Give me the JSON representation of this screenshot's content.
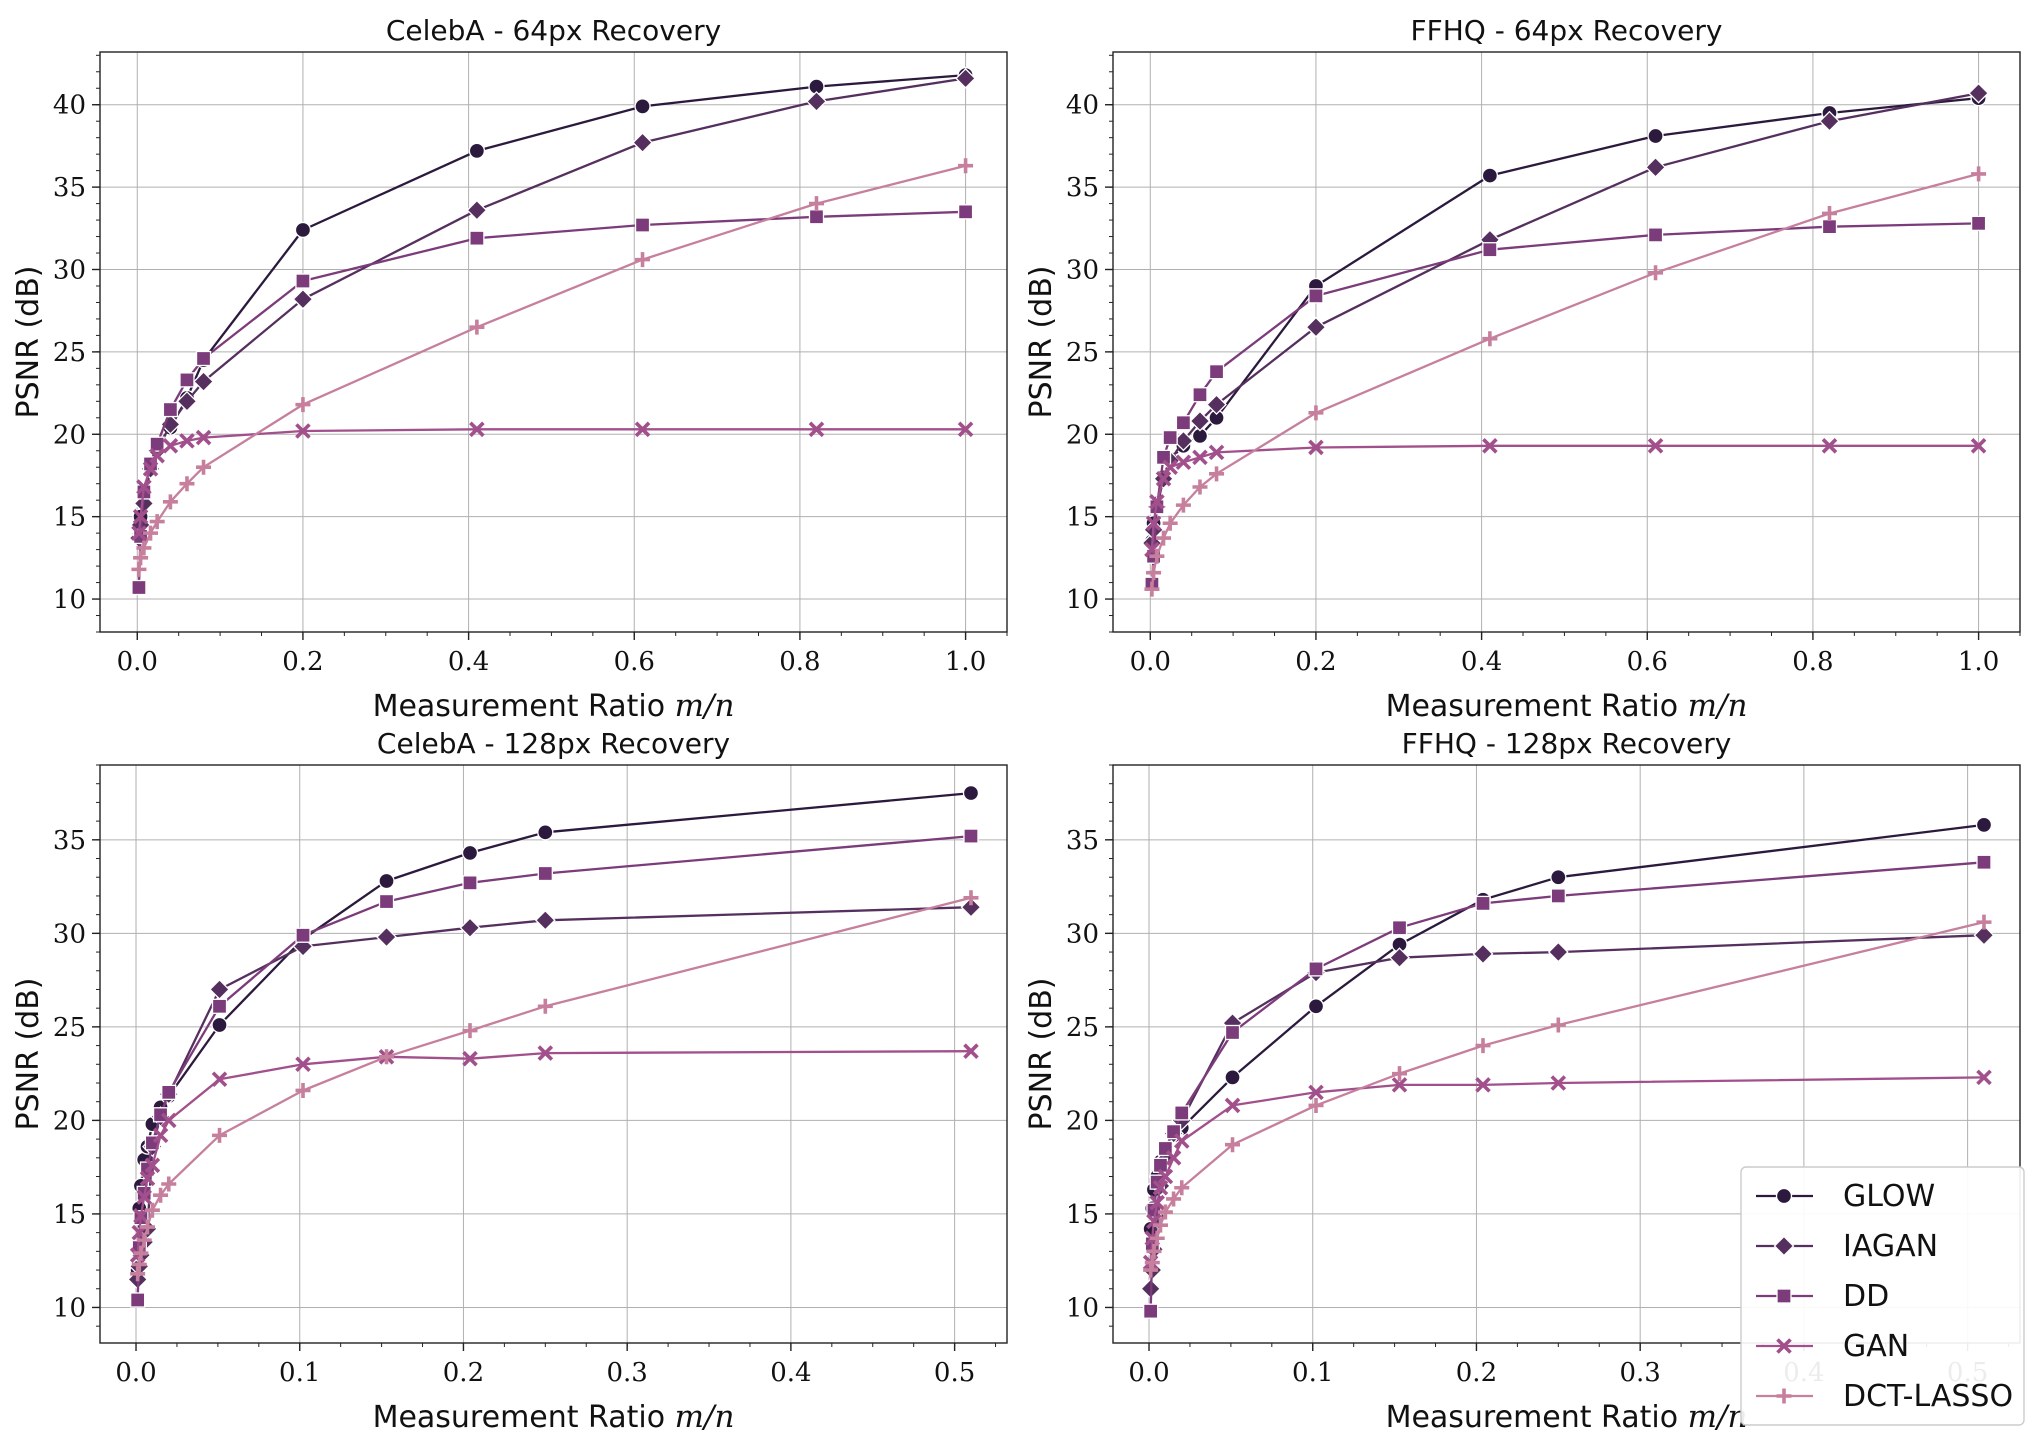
{
  "chart_data": [
    {
      "type": "line",
      "title": "CelebA - 64px Recovery",
      "xlabel": "Measurement Ratio",
      "xlabel_math": "m/n",
      "ylabel": "PSNR (dB)",
      "xlim": [
        -0.045,
        1.05
      ],
      "ylim": [
        8,
        43.2
      ],
      "xticks": [
        0.0,
        0.2,
        0.4,
        0.6,
        0.8,
        1.0
      ],
      "xtick_labels": [
        "0.0",
        "0.2",
        "0.4",
        "0.6",
        "0.8",
        "1.0"
      ],
      "yticks": [
        10,
        15,
        20,
        25,
        30,
        35,
        40
      ],
      "ytick_labels": [
        "10",
        "15",
        "20",
        "25",
        "30",
        "35",
        "40"
      ],
      "grid": true,
      "series": [
        {
          "name": "GLOW",
          "marker": "circle",
          "x": [
            0.002,
            0.004,
            0.008,
            0.016,
            0.024,
            0.04,
            0.06,
            0.08,
            0.2,
            0.41,
            0.61,
            0.82,
            1.0
          ],
          "y": [
            13.8,
            15.0,
            16.2,
            18.1,
            19.3,
            20.4,
            22.2,
            24.5,
            32.4,
            37.2,
            39.9,
            41.1,
            41.8
          ]
        },
        {
          "name": "IAGAN",
          "marker": "diamond",
          "x": [
            0.002,
            0.004,
            0.008,
            0.016,
            0.024,
            0.04,
            0.06,
            0.08,
            0.2,
            0.41,
            0.61,
            0.82,
            1.0
          ],
          "y": [
            13.7,
            14.5,
            15.8,
            17.9,
            19.0,
            20.6,
            22.0,
            23.2,
            28.2,
            33.6,
            37.7,
            40.2,
            41.6
          ]
        },
        {
          "name": "DD",
          "marker": "square",
          "x": [
            0.002,
            0.004,
            0.008,
            0.016,
            0.024,
            0.04,
            0.06,
            0.08,
            0.2,
            0.41,
            0.61,
            0.82,
            1.0
          ],
          "y": [
            10.7,
            13.8,
            16.5,
            18.2,
            19.4,
            21.5,
            23.3,
            24.6,
            29.3,
            31.9,
            32.7,
            33.2,
            33.5
          ]
        },
        {
          "name": "GAN",
          "marker": "x",
          "x": [
            0.002,
            0.004,
            0.008,
            0.016,
            0.024,
            0.04,
            0.06,
            0.08,
            0.2,
            0.41,
            0.61,
            0.82,
            1.0
          ],
          "y": [
            14.0,
            15.0,
            16.8,
            17.9,
            18.7,
            19.3,
            19.6,
            19.8,
            20.2,
            20.3,
            20.3,
            20.3,
            20.3
          ]
        },
        {
          "name": "DCT-LASSO",
          "marker": "plus",
          "x": [
            0.002,
            0.004,
            0.008,
            0.016,
            0.024,
            0.04,
            0.06,
            0.08,
            0.2,
            0.41,
            0.61,
            0.82,
            1.0
          ],
          "y": [
            11.8,
            12.5,
            13.1,
            14.0,
            14.7,
            15.9,
            17.0,
            18.0,
            21.8,
            26.5,
            30.6,
            34.0,
            36.3
          ]
        }
      ]
    },
    {
      "type": "line",
      "title": "FFHQ - 64px Recovery",
      "xlabel": "Measurement Ratio",
      "xlabel_math": "m/n",
      "ylabel": "PSNR (dB)",
      "xlim": [
        -0.045,
        1.05
      ],
      "ylim": [
        8,
        43.2
      ],
      "xticks": [
        0.0,
        0.2,
        0.4,
        0.6,
        0.8,
        1.0
      ],
      "xtick_labels": [
        "0.0",
        "0.2",
        "0.4",
        "0.6",
        "0.8",
        "1.0"
      ],
      "yticks": [
        10,
        15,
        20,
        25,
        30,
        35,
        40
      ],
      "ytick_labels": [
        "10",
        "15",
        "20",
        "25",
        "30",
        "35",
        "40"
      ],
      "grid": true,
      "series": [
        {
          "name": "GLOW",
          "marker": "circle",
          "x": [
            0.002,
            0.004,
            0.008,
            0.016,
            0.024,
            0.04,
            0.06,
            0.08,
            0.2,
            0.41,
            0.61,
            0.82,
            1.0
          ],
          "y": [
            13.5,
            14.6,
            15.8,
            17.4,
            18.5,
            19.3,
            19.9,
            21.0,
            29.0,
            35.7,
            38.1,
            39.5,
            40.4
          ]
        },
        {
          "name": "IAGAN",
          "marker": "diamond",
          "x": [
            0.002,
            0.004,
            0.008,
            0.016,
            0.024,
            0.04,
            0.06,
            0.08,
            0.2,
            0.41,
            0.61,
            0.82,
            1.0
          ],
          "y": [
            13.4,
            14.2,
            15.6,
            17.3,
            18.4,
            19.6,
            20.8,
            21.8,
            26.5,
            31.8,
            36.2,
            39.0,
            40.7
          ]
        },
        {
          "name": "DD",
          "marker": "square",
          "x": [
            0.002,
            0.004,
            0.008,
            0.016,
            0.024,
            0.04,
            0.06,
            0.08,
            0.2,
            0.41,
            0.61,
            0.82,
            1.0
          ],
          "y": [
            10.9,
            12.6,
            15.6,
            18.6,
            19.8,
            20.7,
            22.4,
            23.8,
            28.4,
            31.2,
            32.1,
            32.6,
            32.8
          ]
        },
        {
          "name": "GAN",
          "marker": "x",
          "x": [
            0.002,
            0.004,
            0.008,
            0.016,
            0.024,
            0.04,
            0.06,
            0.08,
            0.2,
            0.41,
            0.61,
            0.82,
            1.0
          ],
          "y": [
            13.0,
            14.6,
            15.9,
            17.3,
            18.0,
            18.3,
            18.6,
            18.9,
            19.2,
            19.3,
            19.3,
            19.3,
            19.3
          ]
        },
        {
          "name": "DCT-LASSO",
          "marker": "plus",
          "x": [
            0.002,
            0.004,
            0.008,
            0.016,
            0.024,
            0.04,
            0.06,
            0.08,
            0.2,
            0.41,
            0.61,
            0.82,
            1.0
          ],
          "y": [
            10.6,
            11.6,
            12.6,
            13.7,
            14.6,
            15.7,
            16.8,
            17.6,
            21.3,
            25.8,
            29.8,
            33.4,
            35.8
          ]
        }
      ]
    },
    {
      "type": "line",
      "title": "CelebA - 128px Recovery",
      "xlabel": "Measurement Ratio",
      "xlabel_math": "m/n",
      "ylabel": "PSNR (dB)",
      "xlim": [
        -0.022,
        0.532
      ],
      "ylim": [
        8.1,
        39.0
      ],
      "xticks": [
        0.0,
        0.1,
        0.2,
        0.3,
        0.4,
        0.5
      ],
      "xtick_labels": [
        "0.0",
        "0.1",
        "0.2",
        "0.3",
        "0.4",
        "0.5"
      ],
      "yticks": [
        10,
        15,
        20,
        25,
        30,
        35
      ],
      "ytick_labels": [
        "10",
        "15",
        "20",
        "25",
        "30",
        "35"
      ],
      "grid": true,
      "series": [
        {
          "name": "GLOW",
          "marker": "circle",
          "x": [
            0.001,
            0.002,
            0.003,
            0.005,
            0.007,
            0.01,
            0.015,
            0.02,
            0.051,
            0.102,
            0.153,
            0.204,
            0.25,
            0.51
          ],
          "y": [
            12.0,
            15.3,
            16.5,
            17.9,
            18.6,
            19.8,
            20.7,
            21.3,
            25.1,
            29.7,
            32.8,
            34.3,
            35.4,
            37.5
          ]
        },
        {
          "name": "IAGAN",
          "marker": "diamond",
          "x": [
            0.001,
            0.002,
            0.003,
            0.005,
            0.007,
            0.01,
            0.015,
            0.02,
            0.051,
            0.102,
            0.153,
            0.204,
            0.25,
            0.51
          ],
          "y": [
            11.5,
            12.2,
            12.8,
            13.5,
            14.2,
            18.6,
            20.2,
            21.4,
            27.0,
            29.3,
            29.8,
            30.3,
            30.7,
            31.4
          ]
        },
        {
          "name": "DD",
          "marker": "square",
          "x": [
            0.001,
            0.002,
            0.003,
            0.005,
            0.007,
            0.01,
            0.015,
            0.02,
            0.051,
            0.102,
            0.153,
            0.204,
            0.25,
            0.51
          ],
          "y": [
            10.4,
            13.2,
            14.8,
            16.1,
            17.4,
            18.8,
            20.3,
            21.5,
            26.1,
            29.9,
            31.7,
            32.7,
            33.2,
            35.2
          ]
        },
        {
          "name": "GAN",
          "marker": "x",
          "x": [
            0.001,
            0.002,
            0.003,
            0.005,
            0.007,
            0.01,
            0.015,
            0.02,
            0.051,
            0.102,
            0.153,
            0.204,
            0.25,
            0.51
          ],
          "y": [
            12.8,
            14.0,
            14.9,
            15.9,
            16.9,
            17.6,
            19.2,
            20.0,
            22.2,
            23.0,
            23.4,
            23.3,
            23.6,
            23.7
          ]
        },
        {
          "name": "DCT-LASSO",
          "marker": "plus",
          "x": [
            0.001,
            0.002,
            0.003,
            0.005,
            0.007,
            0.01,
            0.015,
            0.02,
            0.051,
            0.102,
            0.153,
            0.204,
            0.25,
            0.51
          ],
          "y": [
            11.8,
            12.3,
            12.9,
            13.6,
            14.3,
            15.2,
            16.0,
            16.6,
            19.2,
            21.6,
            23.4,
            24.8,
            26.1,
            31.9
          ]
        }
      ]
    },
    {
      "type": "line",
      "title": "FFHQ - 128px Recovery",
      "xlabel": "Measurement Ratio",
      "xlabel_math": "m/n",
      "ylabel": "PSNR (dB)",
      "xlim": [
        -0.022,
        0.532
      ],
      "ylim": [
        8.1,
        39.0
      ],
      "xticks": [
        0.0,
        0.1,
        0.2,
        0.3,
        0.4,
        0.5
      ],
      "xtick_labels": [
        "0.0",
        "0.1",
        "0.2",
        "0.3",
        "0.4",
        "0.5"
      ],
      "yticks": [
        10,
        15,
        20,
        25,
        30,
        35
      ],
      "ytick_labels": [
        "10",
        "15",
        "20",
        "25",
        "30",
        "35"
      ],
      "grid": true,
      "series": [
        {
          "name": "GLOW",
          "marker": "circle",
          "x": [
            0.001,
            0.002,
            0.003,
            0.005,
            0.007,
            0.01,
            0.015,
            0.02,
            0.051,
            0.102,
            0.153,
            0.204,
            0.25,
            0.51
          ],
          "y": [
            14.2,
            15.3,
            16.3,
            17.0,
            17.8,
            18.4,
            19.2,
            19.6,
            22.3,
            26.1,
            29.4,
            31.8,
            33.0,
            35.8
          ]
        },
        {
          "name": "IAGAN",
          "marker": "diamond",
          "x": [
            0.001,
            0.002,
            0.003,
            0.005,
            0.007,
            0.01,
            0.015,
            0.02,
            0.051,
            0.102,
            0.153,
            0.204,
            0.25,
            0.51
          ],
          "y": [
            11.0,
            12.0,
            13.1,
            14.8,
            16.5,
            17.9,
            19.3,
            20.0,
            25.2,
            27.9,
            28.7,
            28.9,
            29.0,
            29.9
          ]
        },
        {
          "name": "DD",
          "marker": "square",
          "x": [
            0.001,
            0.002,
            0.003,
            0.005,
            0.007,
            0.01,
            0.015,
            0.02,
            0.051,
            0.102,
            0.153,
            0.204,
            0.25,
            0.51
          ],
          "y": [
            9.8,
            13.4,
            15.2,
            16.7,
            17.6,
            18.5,
            19.4,
            20.4,
            24.7,
            28.1,
            30.3,
            31.6,
            32.0,
            33.8
          ]
        },
        {
          "name": "GAN",
          "marker": "x",
          "x": [
            0.001,
            0.002,
            0.003,
            0.005,
            0.007,
            0.01,
            0.015,
            0.02,
            0.051,
            0.102,
            0.153,
            0.204,
            0.25,
            0.51
          ],
          "y": [
            12.4,
            13.7,
            14.6,
            15.6,
            16.4,
            17.0,
            18.0,
            18.9,
            20.8,
            21.5,
            21.9,
            21.9,
            22.0,
            22.3
          ]
        },
        {
          "name": "DCT-LASSO",
          "marker": "plus",
          "x": [
            0.001,
            0.002,
            0.003,
            0.005,
            0.007,
            0.01,
            0.015,
            0.02,
            0.051,
            0.102,
            0.153,
            0.204,
            0.25,
            0.51
          ],
          "y": [
            12.0,
            12.4,
            13.0,
            13.7,
            14.4,
            15.1,
            15.8,
            16.4,
            18.7,
            20.8,
            22.5,
            24.0,
            25.1,
            30.6
          ]
        }
      ]
    }
  ],
  "legend": {
    "location": "lower-right",
    "entries": [
      {
        "name": "GLOW",
        "marker": "circle"
      },
      {
        "name": "IAGAN",
        "marker": "diamond"
      },
      {
        "name": "DD",
        "marker": "square"
      },
      {
        "name": "GAN",
        "marker": "x"
      },
      {
        "name": "DCT-LASSO",
        "marker": "plus"
      }
    ]
  },
  "colors": {
    "GLOW": "#2b1a3e",
    "IAGAN": "#55305e",
    "DD": "#7c3b7a",
    "GAN": "#a2508c",
    "DCT-LASSO": "#c67f9c",
    "grid": "#b0b0b0",
    "axes": "#222222"
  }
}
